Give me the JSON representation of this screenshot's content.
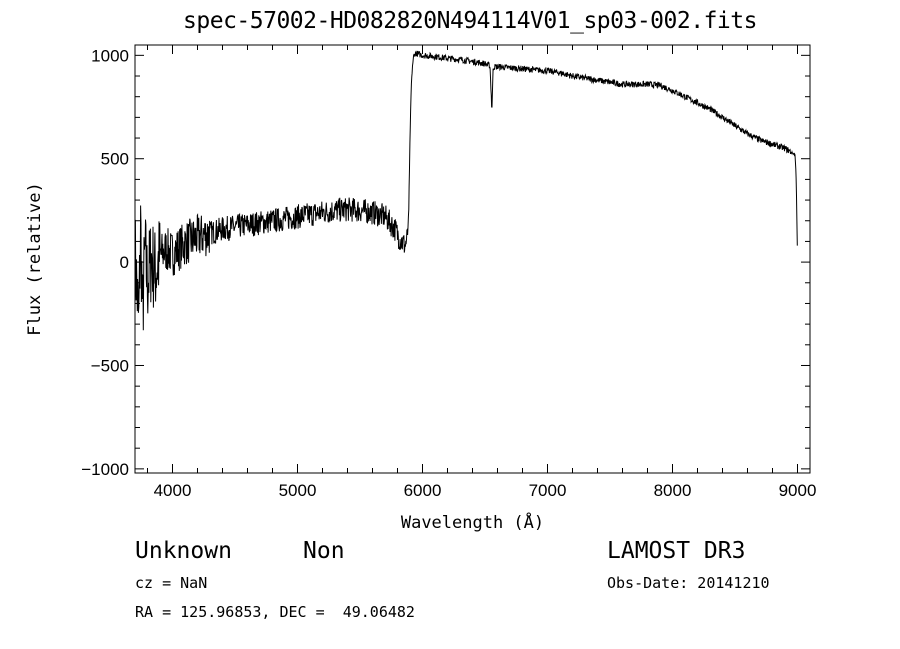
{
  "chart_data": {
    "type": "line",
    "title": "spec-57002-HD082820N494114V01_sp03-002.fits",
    "xlabel": "Wavelength (Å)",
    "ylabel": "Flux (relative)",
    "xlim": [
      3700,
      9100
    ],
    "ylim": [
      -1020,
      1050
    ],
    "xticks": [
      4000,
      5000,
      6000,
      7000,
      8000,
      9000
    ],
    "xtick_labels": [
      "4000",
      "5000",
      "6000",
      "7000",
      "8000",
      "9000"
    ],
    "yticks": [
      -1000,
      -500,
      0,
      500,
      1000
    ],
    "ytick_labels": [
      "−1000",
      "−500",
      "0",
      "500",
      "1000"
    ],
    "grid": false,
    "series": [
      {
        "x": [
          3700,
          3730,
          3745,
          3760,
          3780,
          3800,
          3830,
          3860,
          3900,
          3950,
          4000,
          4100,
          4200,
          4300,
          4400,
          4500,
          4600,
          4700,
          4800,
          4900,
          5000,
          5100,
          5200,
          5300,
          5400,
          5500,
          5600,
          5700,
          5780,
          5820,
          5860,
          5880,
          5890,
          5900,
          5910,
          5920,
          5930,
          5950,
          6000,
          6100,
          6200,
          6300,
          6400,
          6500,
          6540,
          6555,
          6565,
          6580,
          6600,
          6700,
          6800,
          6900,
          7000,
          7100,
          7200,
          7300,
          7400,
          7500,
          7600,
          7700,
          7800,
          7900,
          8000,
          8100,
          8200,
          8300,
          8400,
          8500,
          8600,
          8700,
          8800,
          8900,
          8980,
          8990,
          9000
        ],
        "y": [
          50,
          -300,
          180,
          -250,
          50,
          -100,
          20,
          -50,
          30,
          60,
          40,
          90,
          120,
          140,
          160,
          170,
          180,
          190,
          200,
          210,
          220,
          230,
          240,
          250,
          255,
          250,
          240,
          220,
          160,
          110,
          80,
          120,
          250,
          600,
          850,
          950,
          1000,
          1010,
          1000,
          995,
          985,
          980,
          970,
          960,
          950,
          730,
          940,
          945,
          945,
          940,
          935,
          930,
          925,
          915,
          900,
          890,
          880,
          870,
          860,
          860,
          860,
          855,
          830,
          800,
          770,
          740,
          700,
          660,
          620,
          590,
          570,
          550,
          520,
          400,
          0
        ]
      }
    ]
  },
  "footer": {
    "object_class": "Unknown",
    "object_subclass": "Non",
    "survey": "LAMOST DR3",
    "cz": "cz = NaN",
    "obs_date": "Obs-Date: 20141210",
    "radec": "RA = 125.96853, DEC =  49.06482"
  }
}
